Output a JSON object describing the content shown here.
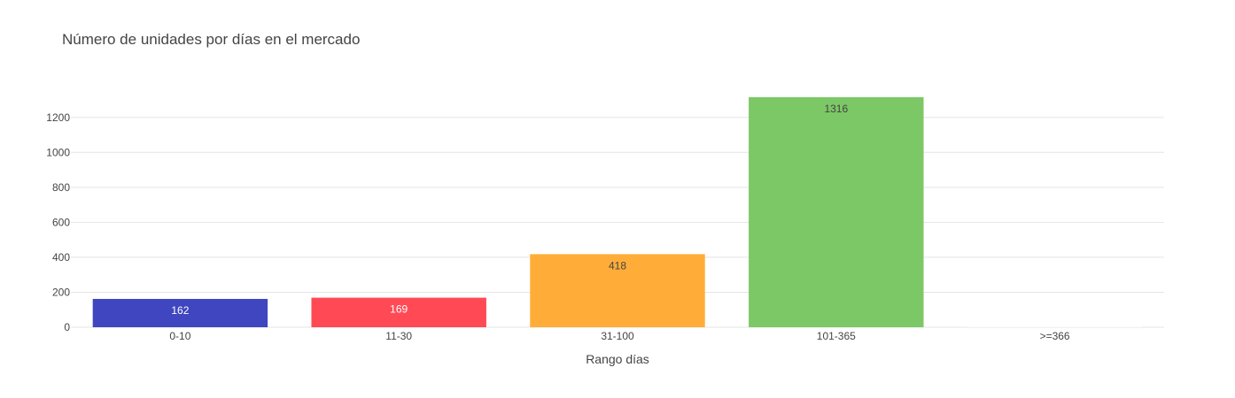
{
  "chart_data": {
    "type": "bar",
    "title": "Número de unidades por días en el mercado",
    "xlabel": "Rango días",
    "ylabel": "",
    "categories": [
      "0-10",
      "11-30",
      "31-100",
      "101-365",
      ">=366"
    ],
    "values": [
      162,
      169,
      418,
      1316,
      1
    ],
    "data_labels": [
      "162",
      "169",
      "418",
      "1316",
      ""
    ],
    "colors": [
      "#3f46c0",
      "#ff4a55",
      "#ffad38",
      "#7cc866",
      "#fff2ee"
    ],
    "label_colors": [
      "#ffffff",
      "#ffffff",
      "#444444",
      "#444444",
      "#444444"
    ],
    "ylim": [
      0,
      1386
    ],
    "yticks": [
      0,
      200,
      400,
      600,
      800,
      1000,
      1200
    ],
    "grid": true,
    "legend": "none"
  }
}
